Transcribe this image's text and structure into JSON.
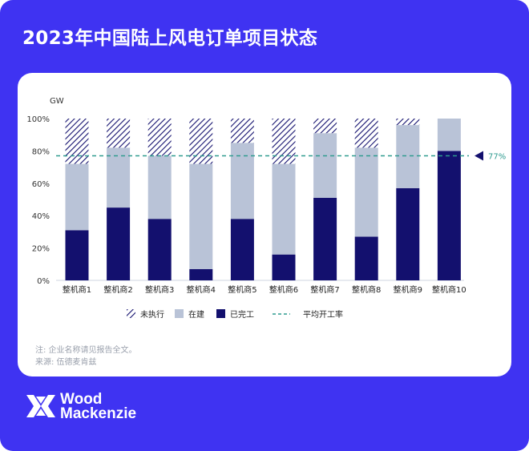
{
  "title": "2023年中国陆上风电订单项目状态",
  "chart_data": {
    "type": "bar",
    "stacked": true,
    "ylabel": "GW",
    "ylim": [
      0,
      100
    ],
    "yticks": [
      "0%",
      "20%",
      "40%",
      "60%",
      "80%",
      "100%"
    ],
    "categories": [
      "整机商1",
      "整机商2",
      "整机商3",
      "整机商4",
      "整机商5",
      "整机商6",
      "整机商7",
      "整机商8",
      "整机商9",
      "整机商10"
    ],
    "series": [
      {
        "name": "已完工",
        "color": "#13106e",
        "values": [
          31,
          45,
          38,
          7,
          38,
          16,
          51,
          27,
          57,
          80
        ]
      },
      {
        "name": "在建",
        "color": "#b9c3d7",
        "values": [
          41,
          37,
          39,
          65,
          47,
          56,
          40,
          55,
          39,
          20
        ]
      },
      {
        "name": "未执行",
        "color": "#13106e",
        "pattern": "hatch",
        "values": [
          28,
          18,
          23,
          28,
          15,
          28,
          9,
          18,
          4,
          0
        ]
      }
    ],
    "legend": [
      "未执行",
      "在建",
      "已完工",
      "平均开工率"
    ],
    "reference_line": {
      "name": "平均开工率",
      "value": 77,
      "label": "77%",
      "color": "#2e9b8f"
    },
    "grid": false,
    "legend_position": "bottom"
  },
  "notes": [
    "注: 企业名称请见报告全文。",
    "来源: 伍德麦肯兹"
  ],
  "logo": {
    "line1": "Wood",
    "line2": "Mackenzie"
  }
}
